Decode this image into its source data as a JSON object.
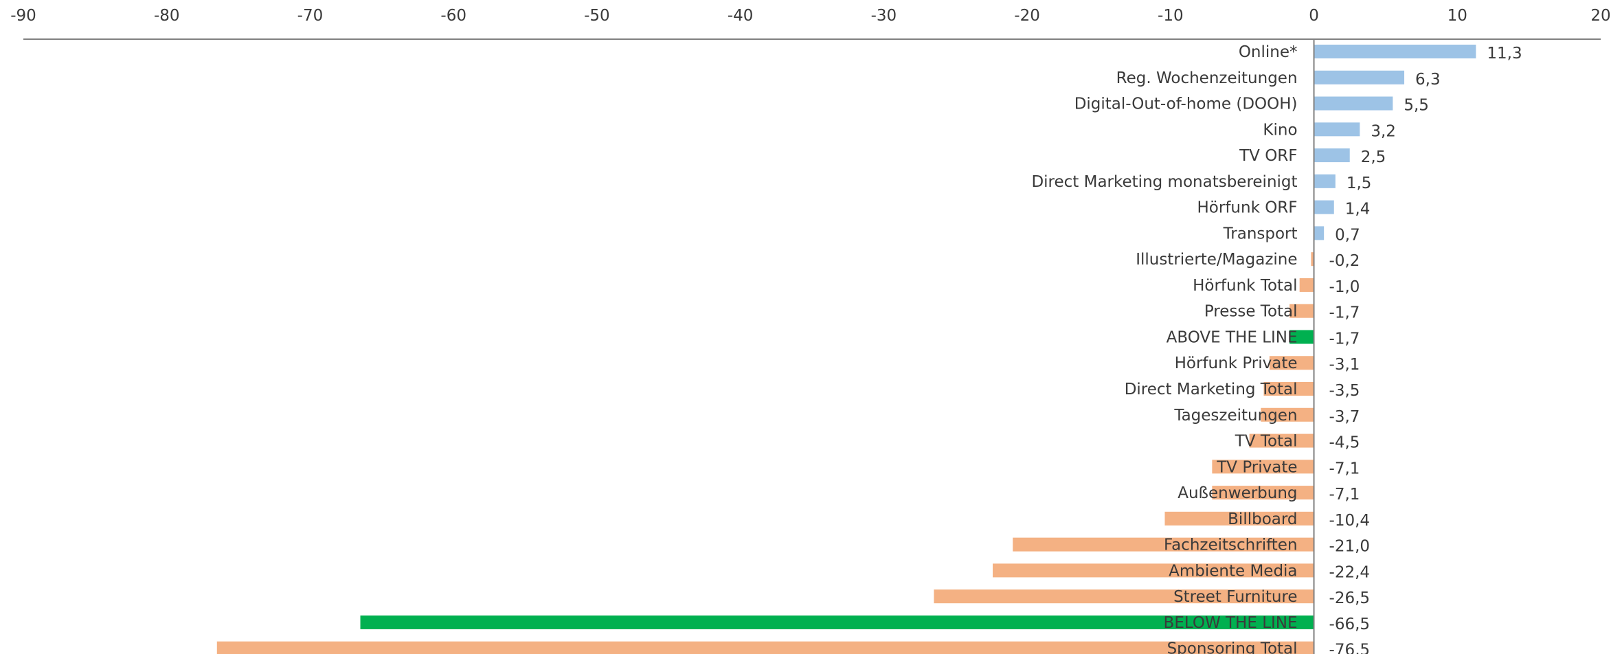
{
  "chart_data": {
    "type": "bar",
    "orientation": "horizontal",
    "title": "",
    "xlabel": "",
    "ylabel": "",
    "xlim": [
      -90,
      20
    ],
    "xticks": [
      -90,
      -80,
      -70,
      -60,
      -50,
      -40,
      -30,
      -20,
      -10,
      0,
      10,
      20
    ],
    "grid": false,
    "legend": "none",
    "decimal_separator": ",",
    "colors": {
      "positive": "#9dc3e6",
      "negative": "#f4b183",
      "highlight": "#00b050",
      "axis": "#808080",
      "text": "#3a3a3a"
    },
    "categories": [
      "Online*",
      "Reg. Wochenzeitungen",
      "Digital-Out-of-home (DOOH)",
      "Kino",
      "TV ORF",
      "Direct Marketing monatsbereinigt",
      "Hörfunk ORF",
      "Transport",
      "Illustrierte/Magazine",
      "Hörfunk Total",
      "Presse Total",
      "ABOVE THE LINE",
      "Hörfunk Private",
      "Direct Marketing Total",
      "Tageszeitungen",
      "TV Total",
      "TV Private",
      "Außenwerbung",
      "Billboard",
      "Fachzeitschriften",
      "Ambiente Media",
      "Street Furniture",
      "BELOW THE LINE",
      "Sponsoring Total"
    ],
    "values": [
      11.3,
      6.3,
      5.5,
      3.2,
      2.5,
      1.5,
      1.4,
      0.7,
      -0.2,
      -1.0,
      -1.7,
      -1.7,
      -3.1,
      -3.5,
      -3.7,
      -4.5,
      -7.1,
      -7.1,
      -10.4,
      -21.0,
      -22.4,
      -26.5,
      -66.5,
      -76.5
    ],
    "highlighted": [
      "ABOVE THE LINE",
      "BELOW THE LINE"
    ]
  }
}
